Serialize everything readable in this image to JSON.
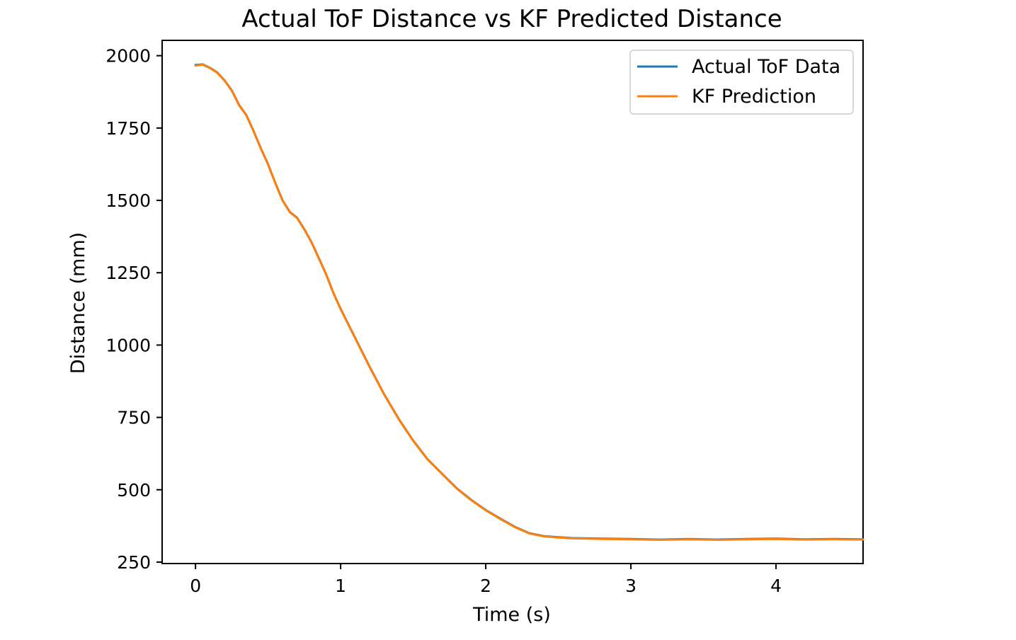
{
  "chart_data": {
    "type": "line",
    "title": "Actual ToF Distance vs KF Predicted Distance",
    "xlabel": "Time (s)",
    "ylabel": "Distance (mm)",
    "xlim": [
      -0.23,
      4.6
    ],
    "ylim": [
      245,
      2053
    ],
    "xticks": [
      0,
      1,
      2,
      3,
      4
    ],
    "yticks": [
      250,
      500,
      750,
      1000,
      1250,
      1500,
      1750,
      2000
    ],
    "xtick_labels": [
      "0",
      "1",
      "2",
      "3",
      "4"
    ],
    "ytick_labels": [
      "250",
      "500",
      "750",
      "1000",
      "1250",
      "1500",
      "1750",
      "2000"
    ],
    "grid": false,
    "legend_position": "top-right",
    "series": [
      {
        "name": "Actual ToF Data",
        "color": "#1f77b4",
        "x": [
          0,
          0.05,
          0.1,
          0.15,
          0.2,
          0.25,
          0.3,
          0.35,
          0.4,
          0.45,
          0.5,
          0.55,
          0.6,
          0.65,
          0.7,
          0.75,
          0.8,
          0.85,
          0.9,
          0.95,
          1.0,
          1.1,
          1.2,
          1.3,
          1.4,
          1.5,
          1.6,
          1.7,
          1.8,
          1.9,
          2.0,
          2.1,
          2.2,
          2.3,
          2.4,
          2.5,
          2.6,
          2.8,
          3.0,
          3.2,
          3.4,
          3.6,
          3.8,
          4.0,
          4.2,
          4.4,
          4.6
        ],
        "values": [
          1968,
          1970,
          1958,
          1942,
          1915,
          1880,
          1830,
          1795,
          1740,
          1680,
          1625,
          1560,
          1500,
          1460,
          1440,
          1400,
          1355,
          1300,
          1245,
          1180,
          1125,
          1025,
          925,
          830,
          745,
          670,
          605,
          555,
          505,
          465,
          430,
          400,
          372,
          350,
          340,
          336,
          333,
          331,
          330,
          328,
          330,
          328,
          330,
          331,
          329,
          330,
          329
        ]
      },
      {
        "name": "KF Prediction",
        "color": "#ff7f0e",
        "x": [
          0,
          0.05,
          0.1,
          0.15,
          0.2,
          0.25,
          0.3,
          0.35,
          0.4,
          0.45,
          0.5,
          0.55,
          0.6,
          0.65,
          0.7,
          0.75,
          0.8,
          0.85,
          0.9,
          0.95,
          1.0,
          1.1,
          1.2,
          1.3,
          1.4,
          1.5,
          1.6,
          1.7,
          1.8,
          1.9,
          2.0,
          2.1,
          2.2,
          2.3,
          2.4,
          2.5,
          2.6,
          2.8,
          3.0,
          3.2,
          3.4,
          3.6,
          3.8,
          4.0,
          4.2,
          4.4,
          4.6
        ],
        "values": [
          1966,
          1969,
          1957,
          1941,
          1914,
          1879,
          1829,
          1794,
          1739,
          1679,
          1624,
          1559,
          1499,
          1459,
          1439,
          1399,
          1354,
          1299,
          1244,
          1179,
          1124,
          1024,
          924,
          829,
          744,
          669,
          604,
          554,
          504,
          464,
          429,
          399,
          371,
          349,
          339,
          335,
          332,
          330,
          329,
          327,
          329,
          327,
          329,
          330,
          328,
          329,
          328
        ]
      }
    ]
  }
}
